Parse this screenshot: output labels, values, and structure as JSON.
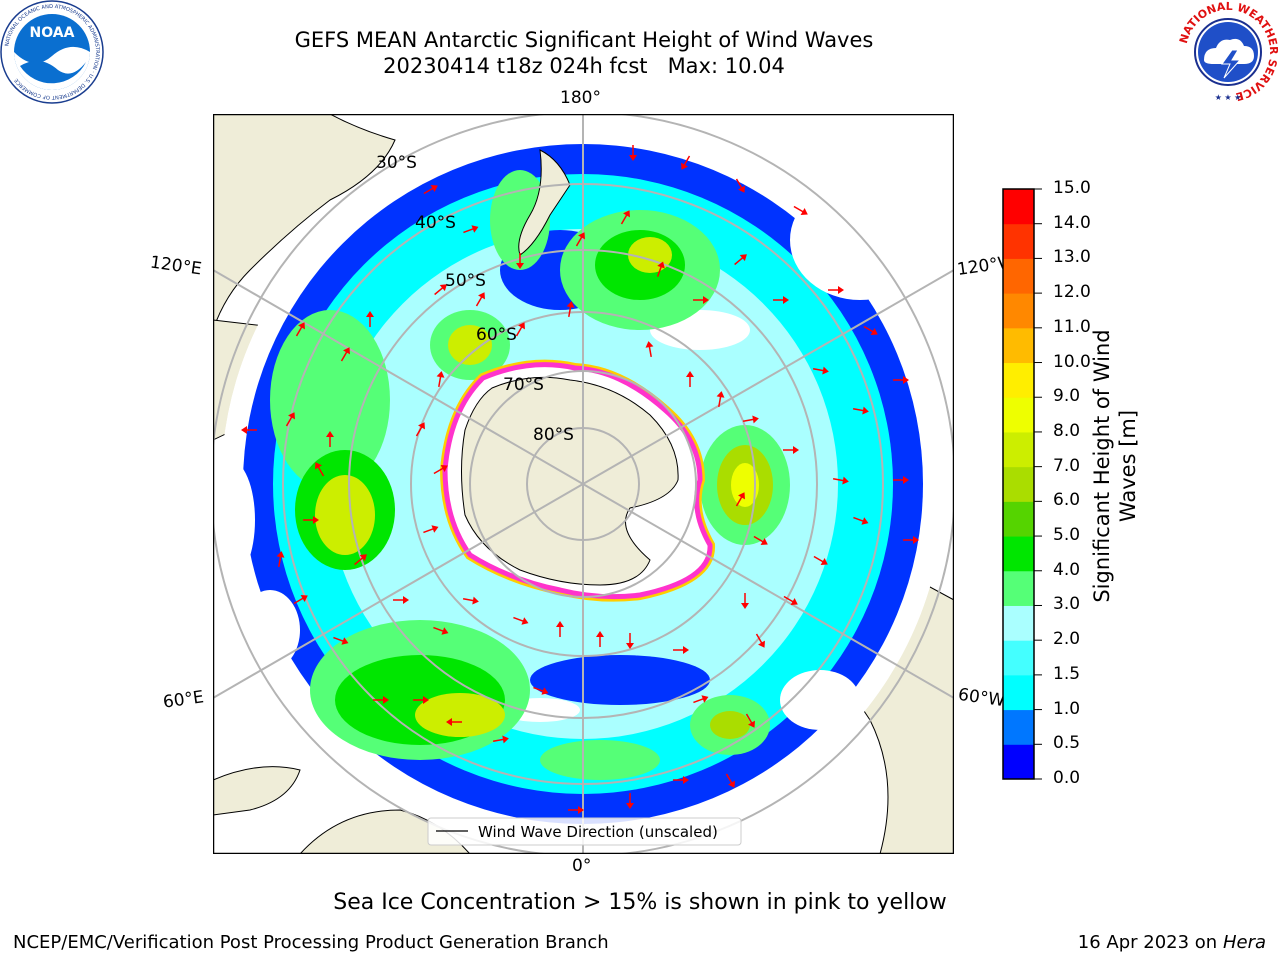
{
  "header": {
    "title_line1": "GEFS MEAN Antarctic Significant Height of Wind Waves",
    "title_line2": "20230414 t18z 024h fcst   Max: 10.04",
    "left_logo": {
      "icon": "noaa-logo",
      "text": "NOAA",
      "ring_text": "NATIONAL OCEANIC AND ATMOSPHERIC ADMINISTRATION · U.S. DEPARTMENT OF COMMERCE"
    },
    "right_logo": {
      "icon": "nws-logo",
      "ring_text": "NATIONAL WEATHER SERVICE"
    }
  },
  "map": {
    "projection": "south-polar-stereographic",
    "longitude_labels": {
      "top": "180°",
      "bottom": "0°",
      "upper_left": "120°E",
      "upper_right": "120°W",
      "lower_left": "60°E",
      "lower_right": "60°W"
    },
    "latitude_labels": [
      "30°S",
      "40°S",
      "50°S",
      "60°S",
      "70°S",
      "80°S"
    ],
    "legend": "Wind Wave Direction (unscaled)",
    "land_color": "#efedd8",
    "ice_edge_colors": [
      "#ff33cc",
      "#ffcc00"
    ],
    "arrow_color": "#ff0000",
    "gridline_color": "#b4b4b4"
  },
  "colorbar": {
    "label": "Significant Height of Wind Waves [m]",
    "ticks": [
      "0.0",
      "0.5",
      "1.0",
      "1.5",
      "2.0",
      "3.0",
      "4.0",
      "5.0",
      "6.0",
      "7.0",
      "8.0",
      "9.0",
      "10.0",
      "11.0",
      "12.0",
      "13.0",
      "14.0",
      "15.0"
    ],
    "colors": [
      "#0000ff",
      "#0077ff",
      "#00ffff",
      "#44ffff",
      "#aaffff",
      "#55ff77",
      "#00e600",
      "#55d400",
      "#aadd00",
      "#ccee00",
      "#eeff00",
      "#ffee00",
      "#ffbb00",
      "#ff8800",
      "#ff6600",
      "#ff3300",
      "#ff0000"
    ]
  },
  "caption": "Sea Ice Concentration > 15% is shown in pink to yellow",
  "footer": {
    "left": "NCEP/EMC/Verification Post Processing Product Generation Branch",
    "date": "16 Apr 2023 on ",
    "machine": "Hera"
  }
}
